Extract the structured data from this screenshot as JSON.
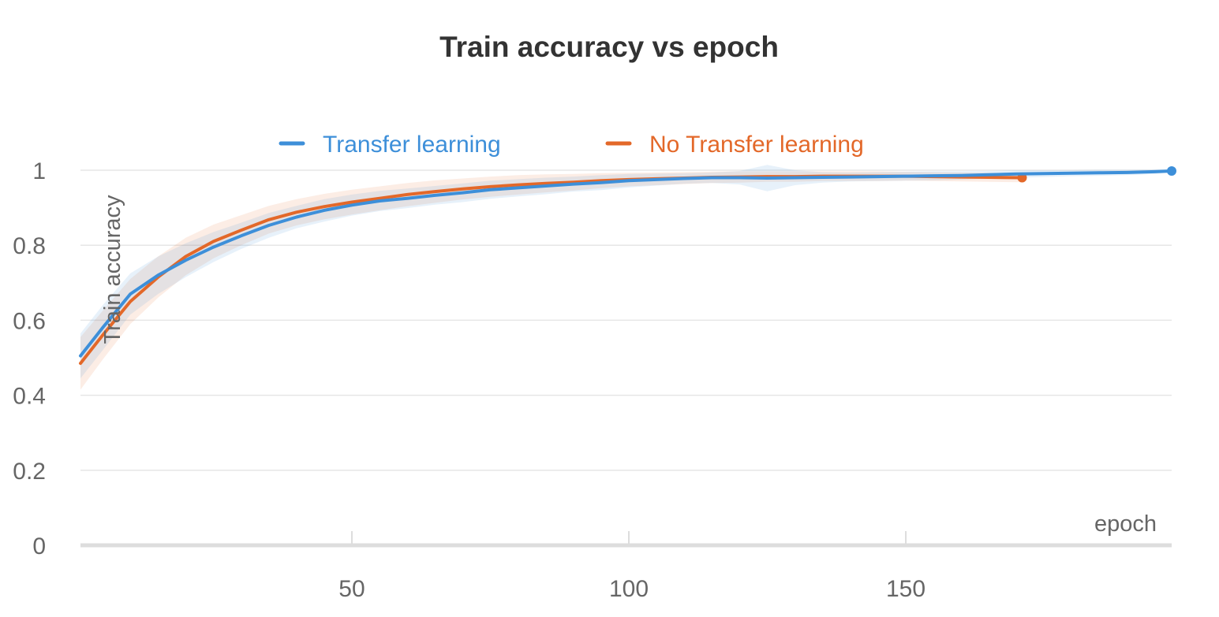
{
  "chart_data": {
    "type": "line",
    "title": "Train accuracy vs epoch",
    "xlabel": "epoch",
    "ylabel": "Train accuracy",
    "xlim": [
      1,
      198
    ],
    "ylim": [
      0,
      1
    ],
    "x_ticks": [
      "50",
      "100",
      "150"
    ],
    "x_tick_values": [
      50,
      100,
      150
    ],
    "y_ticks": [
      "0",
      "0.2",
      "0.4",
      "0.6",
      "0.8",
      "1"
    ],
    "y_tick_values": [
      0,
      0.2,
      0.4,
      0.6,
      0.8,
      1
    ],
    "grid": "horizontal",
    "legend_position": "top",
    "series": [
      {
        "name": "Transfer learning",
        "color": "#3d8fd9",
        "x": [
          1,
          5,
          10,
          15,
          20,
          25,
          30,
          35,
          40,
          45,
          50,
          55,
          60,
          65,
          70,
          75,
          80,
          85,
          90,
          95,
          100,
          105,
          110,
          115,
          120,
          125,
          130,
          135,
          140,
          145,
          150,
          155,
          160,
          165,
          170,
          175,
          180,
          185,
          190,
          195,
          198
        ],
        "values": [
          0.505,
          0.58,
          0.67,
          0.72,
          0.76,
          0.795,
          0.825,
          0.853,
          0.875,
          0.893,
          0.907,
          0.918,
          0.925,
          0.933,
          0.94,
          0.948,
          0.953,
          0.958,
          0.963,
          0.967,
          0.972,
          0.975,
          0.978,
          0.98,
          0.98,
          0.979,
          0.98,
          0.981,
          0.982,
          0.983,
          0.984,
          0.985,
          0.986,
          0.988,
          0.99,
          0.991,
          0.992,
          0.993,
          0.994,
          0.996,
          0.998
        ],
        "band_width": [
          0.06,
          0.06,
          0.055,
          0.05,
          0.045,
          0.04,
          0.035,
          0.033,
          0.03,
          0.03,
          0.028,
          0.027,
          0.026,
          0.025,
          0.025,
          0.024,
          0.023,
          0.022,
          0.02,
          0.02,
          0.018,
          0.016,
          0.014,
          0.014,
          0.018,
          0.035,
          0.02,
          0.014,
          0.012,
          0.012,
          0.012,
          0.012,
          0.011,
          0.01,
          0.01,
          0.009,
          0.008,
          0.008,
          0.007,
          0.006,
          0.004
        ]
      },
      {
        "name": "No Transfer learning",
        "color": "#e36829",
        "x": [
          1,
          5,
          10,
          15,
          20,
          25,
          30,
          35,
          40,
          45,
          50,
          55,
          60,
          65,
          70,
          75,
          80,
          85,
          90,
          95,
          100,
          105,
          110,
          115,
          120,
          125,
          130,
          135,
          140,
          145,
          150,
          155,
          160,
          165,
          171
        ],
        "values": [
          0.485,
          0.56,
          0.65,
          0.715,
          0.77,
          0.81,
          0.84,
          0.868,
          0.888,
          0.903,
          0.915,
          0.925,
          0.935,
          0.943,
          0.95,
          0.956,
          0.961,
          0.965,
          0.968,
          0.972,
          0.975,
          0.977,
          0.979,
          0.981,
          0.982,
          0.983,
          0.983,
          0.984,
          0.984,
          0.984,
          0.984,
          0.983,
          0.982,
          0.981,
          0.98
        ],
        "band_width": [
          0.07,
          0.065,
          0.06,
          0.055,
          0.05,
          0.045,
          0.04,
          0.037,
          0.035,
          0.034,
          0.033,
          0.032,
          0.031,
          0.03,
          0.028,
          0.027,
          0.026,
          0.024,
          0.022,
          0.02,
          0.018,
          0.017,
          0.016,
          0.015,
          0.015,
          0.014,
          0.014,
          0.013,
          0.013,
          0.013,
          0.012,
          0.012,
          0.012,
          0.012,
          0.012
        ]
      }
    ]
  }
}
